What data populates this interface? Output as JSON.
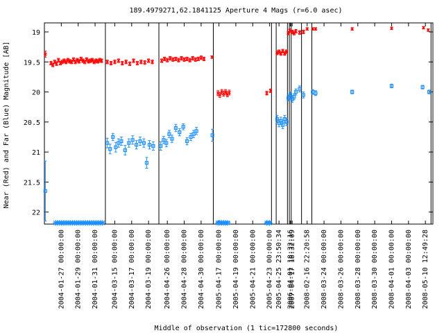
{
  "chart_data": {
    "type": "scatter",
    "title": "189.4979271,62.1841125   Aperture 4 Mags (r=6.0 asec)",
    "xlabel": "Middle of observation (1 tic=172800 seconds)",
    "ylabel": "Near (Red) and Far (Blue) Magnitude [AB]",
    "ylim": [
      22.2,
      18.85
    ],
    "y_ticks": [
      "19",
      "19.5",
      "20",
      "20.5",
      "21",
      "21.5",
      "22"
    ],
    "x_ticks": [
      "2004-01-27 00:00:00",
      "2004-01-29 00:00:00",
      "2004-01-31 00:00:00",
      "2004-03-15 00:00:00",
      "2004-03-17 00:00:00",
      "2004-03-19 00:00:00",
      "2004-04-26 00:00:00",
      "2004-04-28 00:00:00",
      "2004-04-30 00:00:00",
      "2005-04-17 00:00:00",
      "2005-04-19 00:00:00",
      "2005-04-21 00:00:00",
      "2005-04-23 00:00:00",
      "2005-04-25 23:50:34",
      "2006-04-01 18:32:16",
      "2007-04-17 18:32:09",
      "2008-02-16 22:20:58",
      "2008-03-24 00:00:00",
      "2008-03-26 00:00:00",
      "2008-03-28 00:00:00",
      "2008-03-30 00:00:00",
      "2008-04-01 00:00:00",
      "2008-04-03 00:00:00",
      "2008-05-10 12:49:28"
    ],
    "x_tick_index": [
      0.9,
      1.8,
      2.7,
      3.75,
      4.65,
      5.55,
      6.55,
      7.45,
      8.35,
      9.3,
      10.2,
      11.1,
      12.0,
      12.5,
      13.1,
      13.2,
      14.0,
      14.9,
      15.8,
      16.7,
      17.6,
      18.5,
      19.4,
      20.3
    ],
    "xlim": [
      0,
      20.7
    ],
    "segment_breaks": [
      3.25,
      6.1,
      9.0,
      12.1,
      12.35,
      12.95,
      13.05,
      13.15,
      13.7,
      14.25,
      20.6
    ],
    "series": [
      {
        "name": "Near (Red)",
        "color": "#ff0000",
        "marker": "x",
        "points": [
          [
            0.05,
            19.37,
            0.05
          ],
          [
            0.35,
            19.52,
            0.03
          ],
          [
            0.45,
            19.55,
            0.03
          ],
          [
            0.55,
            19.5,
            0.03
          ],
          [
            0.65,
            19.53,
            0.03
          ],
          [
            0.75,
            19.47,
            0.03
          ],
          [
            0.85,
            19.52,
            0.03
          ],
          [
            0.95,
            19.5,
            0.03
          ],
          [
            1.05,
            19.48,
            0.03
          ],
          [
            1.15,
            19.5,
            0.03
          ],
          [
            1.25,
            19.47,
            0.03
          ],
          [
            1.35,
            19.49,
            0.03
          ],
          [
            1.45,
            19.5,
            0.03
          ],
          [
            1.55,
            19.46,
            0.03
          ],
          [
            1.65,
            19.5,
            0.03
          ],
          [
            1.75,
            19.47,
            0.03
          ],
          [
            1.85,
            19.49,
            0.03
          ],
          [
            1.95,
            19.45,
            0.03
          ],
          [
            2.05,
            19.48,
            0.03
          ],
          [
            2.15,
            19.5,
            0.03
          ],
          [
            2.25,
            19.46,
            0.03
          ],
          [
            2.35,
            19.49,
            0.03
          ],
          [
            2.45,
            19.48,
            0.03
          ],
          [
            2.55,
            19.47,
            0.03
          ],
          [
            2.65,
            19.5,
            0.03
          ],
          [
            2.75,
            19.48,
            0.03
          ],
          [
            2.85,
            19.49,
            0.03
          ],
          [
            2.95,
            19.47,
            0.03
          ],
          [
            3.05,
            19.48,
            0.03
          ],
          [
            3.35,
            19.5,
            0.03
          ],
          [
            3.55,
            19.52,
            0.03
          ],
          [
            3.75,
            19.5,
            0.03
          ],
          [
            3.95,
            19.48,
            0.03
          ],
          [
            4.15,
            19.52,
            0.03
          ],
          [
            4.35,
            19.5,
            0.03
          ],
          [
            4.55,
            19.53,
            0.03
          ],
          [
            4.75,
            19.48,
            0.03
          ],
          [
            4.95,
            19.52,
            0.03
          ],
          [
            5.15,
            19.5,
            0.03
          ],
          [
            5.35,
            19.51,
            0.03
          ],
          [
            5.55,
            19.48,
            0.03
          ],
          [
            5.75,
            19.5,
            0.03
          ],
          [
            6.25,
            19.48,
            0.03
          ],
          [
            6.4,
            19.45,
            0.03
          ],
          [
            6.55,
            19.47,
            0.03
          ],
          [
            6.7,
            19.44,
            0.03
          ],
          [
            6.85,
            19.46,
            0.03
          ],
          [
            7.0,
            19.45,
            0.03
          ],
          [
            7.15,
            19.47,
            0.03
          ],
          [
            7.3,
            19.44,
            0.03
          ],
          [
            7.45,
            19.46,
            0.03
          ],
          [
            7.6,
            19.45,
            0.03
          ],
          [
            7.75,
            19.47,
            0.03
          ],
          [
            7.9,
            19.44,
            0.03
          ],
          [
            8.05,
            19.46,
            0.03
          ],
          [
            8.2,
            19.45,
            0.03
          ],
          [
            8.35,
            19.43,
            0.03
          ],
          [
            8.5,
            19.45,
            0.03
          ],
          [
            8.93,
            19.42,
            0.02
          ],
          [
            9.25,
            20.02,
            0.04
          ],
          [
            9.35,
            20.05,
            0.04
          ],
          [
            9.45,
            20.0,
            0.04
          ],
          [
            9.55,
            20.03,
            0.04
          ],
          [
            9.65,
            20.0,
            0.04
          ],
          [
            9.75,
            20.04,
            0.04
          ],
          [
            9.85,
            20.01,
            0.04
          ],
          [
            11.85,
            20.02,
            0.03
          ],
          [
            12.05,
            19.98,
            0.03
          ],
          [
            12.4,
            19.35,
            0.03
          ],
          [
            12.5,
            19.33,
            0.03
          ],
          [
            12.6,
            19.36,
            0.03
          ],
          [
            12.7,
            19.32,
            0.03
          ],
          [
            12.8,
            19.36,
            0.03
          ],
          [
            12.9,
            19.33,
            0.03
          ],
          [
            13.0,
            19.02,
            0.03
          ],
          [
            13.08,
            18.98,
            0.03
          ],
          [
            13.2,
            19.0,
            0.03
          ],
          [
            13.3,
            19.02,
            0.03
          ],
          [
            13.4,
            18.99,
            0.03
          ],
          [
            13.6,
            19.01,
            0.03
          ],
          [
            13.8,
            19.0,
            0.03
          ],
          [
            14.0,
            18.95,
            0.02
          ],
          [
            14.3,
            18.95,
            0.02
          ],
          [
            14.45,
            18.95,
            0.02
          ],
          [
            16.4,
            18.95,
            0.02
          ],
          [
            18.5,
            18.94,
            0.02
          ],
          [
            20.2,
            18.93,
            0.02
          ],
          [
            20.45,
            18.97,
            0.02
          ]
        ]
      },
      {
        "name": "Far (Blue)",
        "color": "#1e90ff",
        "marker": "square",
        "points": [
          [
            0.05,
            21.65,
            0.5
          ],
          [
            3.35,
            20.85,
            0.08
          ],
          [
            3.5,
            20.95,
            0.08
          ],
          [
            3.65,
            20.75,
            0.06
          ],
          [
            3.8,
            20.92,
            0.08
          ],
          [
            3.95,
            20.85,
            0.07
          ],
          [
            4.1,
            20.82,
            0.07
          ],
          [
            4.3,
            20.97,
            0.08
          ],
          [
            4.5,
            20.85,
            0.07
          ],
          [
            4.7,
            20.8,
            0.07
          ],
          [
            4.9,
            20.88,
            0.07
          ],
          [
            5.1,
            20.82,
            0.07
          ],
          [
            5.3,
            20.85,
            0.07
          ],
          [
            5.45,
            21.18,
            0.09
          ],
          [
            5.6,
            20.88,
            0.07
          ],
          [
            5.8,
            20.9,
            0.07
          ],
          [
            6.2,
            20.9,
            0.07
          ],
          [
            6.35,
            20.8,
            0.06
          ],
          [
            6.5,
            20.85,
            0.06
          ],
          [
            6.65,
            20.7,
            0.06
          ],
          [
            6.8,
            20.78,
            0.06
          ],
          [
            7.0,
            20.6,
            0.06
          ],
          [
            7.2,
            20.67,
            0.06
          ],
          [
            7.4,
            20.58,
            0.05
          ],
          [
            7.6,
            20.82,
            0.06
          ],
          [
            7.8,
            20.75,
            0.06
          ],
          [
            7.95,
            20.7,
            0.06
          ],
          [
            8.1,
            20.65,
            0.06
          ],
          [
            8.95,
            20.72,
            0.1
          ],
          [
            9.25,
            22.18,
            0
          ],
          [
            9.4,
            22.18,
            0
          ],
          [
            9.5,
            22.18,
            0
          ],
          [
            9.6,
            22.18,
            0
          ],
          [
            9.7,
            22.18,
            0
          ],
          [
            9.8,
            22.18,
            0
          ],
          [
            11.85,
            22.18,
            0
          ],
          [
            12.0,
            22.18,
            0
          ],
          [
            12.4,
            20.45,
            0.06
          ],
          [
            12.5,
            20.52,
            0.06
          ],
          [
            12.6,
            20.48,
            0.06
          ],
          [
            12.7,
            20.55,
            0.06
          ],
          [
            12.8,
            20.45,
            0.06
          ],
          [
            12.9,
            20.5,
            0.06
          ],
          [
            13.0,
            20.1,
            0.05
          ],
          [
            13.1,
            20.05,
            0.05
          ],
          [
            13.2,
            20.12,
            0.05
          ],
          [
            13.3,
            20.08,
            0.05
          ],
          [
            13.4,
            20.0,
            0.05
          ],
          [
            13.6,
            19.95,
            0.05
          ],
          [
            13.8,
            20.05,
            0.05
          ],
          [
            14.3,
            20.0,
            0.04
          ],
          [
            14.45,
            20.02,
            0.04
          ],
          [
            16.4,
            20.0,
            0.03
          ],
          [
            18.5,
            19.9,
            0.03
          ],
          [
            20.15,
            19.92,
            0.03
          ],
          [
            20.5,
            20.0,
            0.03
          ]
        ]
      },
      {
        "name": "Far (Blue) limits",
        "color": "#1e90ff",
        "marker": "asterisk",
        "points": [
          [
            0.6,
            22.18,
            0
          ],
          [
            0.7,
            22.18,
            0
          ],
          [
            0.8,
            22.18,
            0
          ],
          [
            0.9,
            22.18,
            0
          ],
          [
            1.0,
            22.18,
            0
          ],
          [
            1.1,
            22.18,
            0
          ],
          [
            1.2,
            22.18,
            0
          ],
          [
            1.3,
            22.18,
            0
          ],
          [
            1.4,
            22.18,
            0
          ],
          [
            1.5,
            22.18,
            0
          ],
          [
            1.6,
            22.18,
            0
          ],
          [
            1.7,
            22.18,
            0
          ],
          [
            1.8,
            22.18,
            0
          ],
          [
            1.9,
            22.18,
            0
          ],
          [
            2.0,
            22.18,
            0
          ],
          [
            2.1,
            22.18,
            0
          ],
          [
            2.2,
            22.18,
            0
          ],
          [
            2.3,
            22.18,
            0
          ],
          [
            2.4,
            22.18,
            0
          ],
          [
            2.5,
            22.18,
            0
          ],
          [
            2.6,
            22.18,
            0
          ],
          [
            2.7,
            22.18,
            0
          ],
          [
            2.8,
            22.18,
            0
          ],
          [
            2.9,
            22.18,
            0
          ],
          [
            3.0,
            22.18,
            0
          ],
          [
            3.1,
            22.18,
            0
          ],
          [
            9.25,
            22.18,
            0
          ],
          [
            9.35,
            22.18,
            0
          ],
          [
            9.45,
            22.18,
            0
          ],
          [
            9.55,
            22.18,
            0
          ],
          [
            9.65,
            22.18,
            0
          ],
          [
            9.75,
            22.18,
            0
          ],
          [
            11.85,
            22.18,
            0
          ],
          [
            12.0,
            22.18,
            0
          ]
        ]
      }
    ],
    "grid": false,
    "legend": "none"
  }
}
